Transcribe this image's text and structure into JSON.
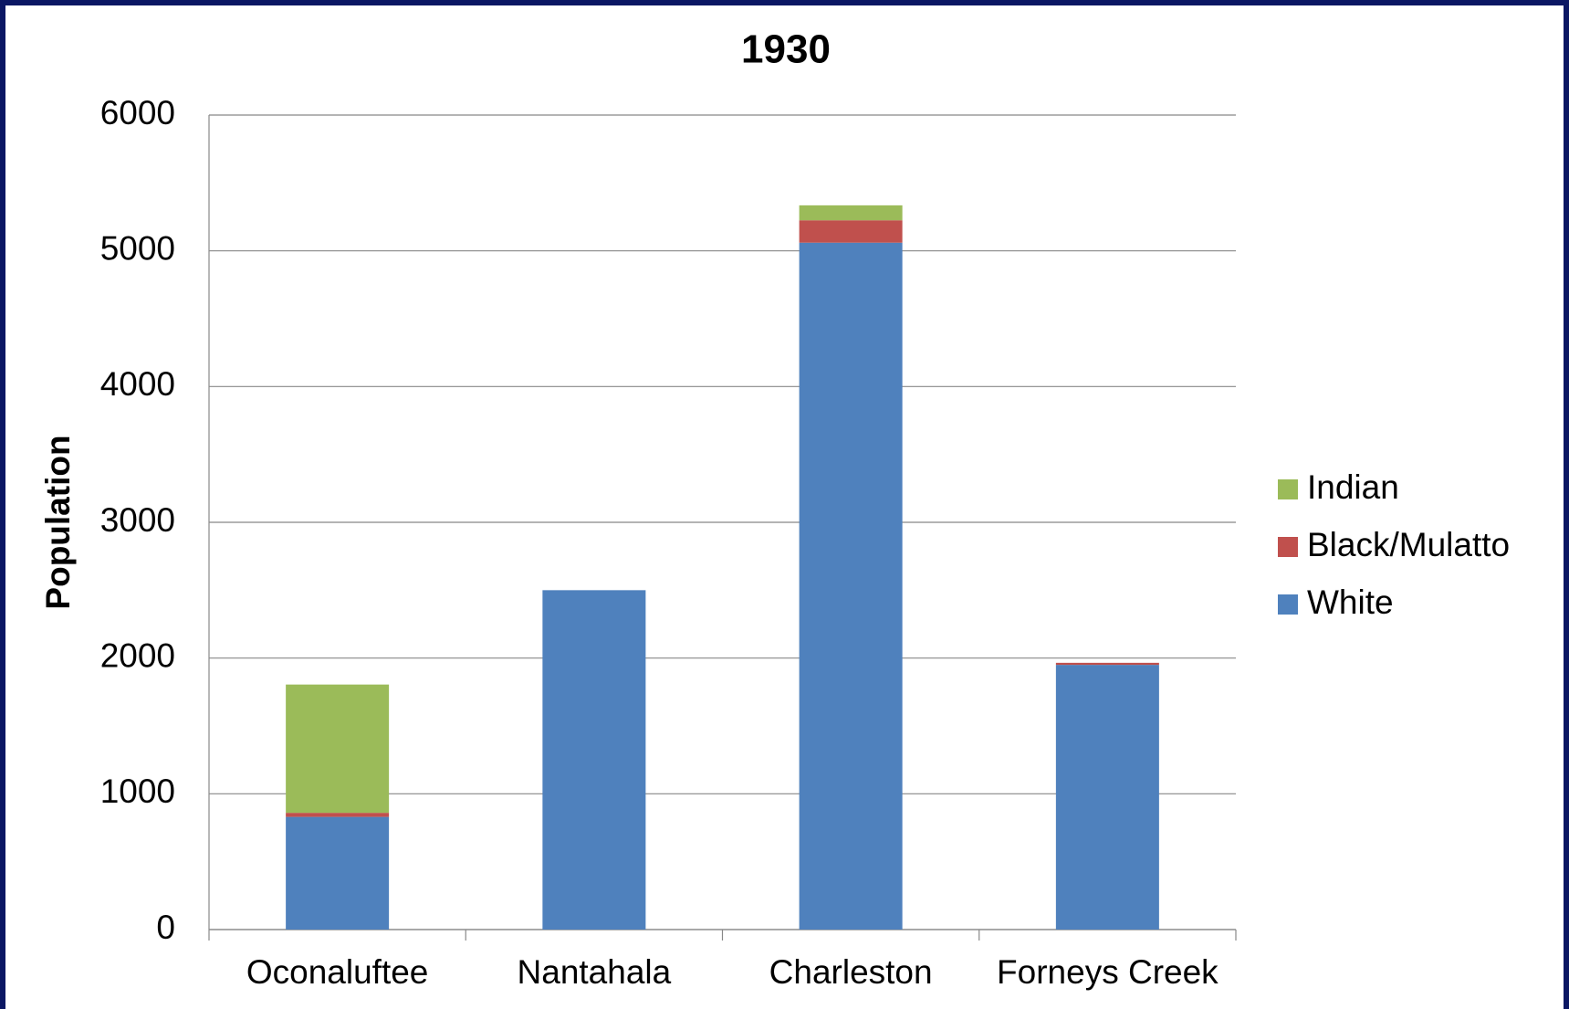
{
  "chart_data": {
    "type": "bar",
    "stacked": true,
    "title": "1930",
    "y_label": "Population",
    "categories": [
      "Oconaluftee",
      "Nantahala",
      "Charleston",
      "Forneys Creek"
    ],
    "series": [
      {
        "name": "White",
        "color": "#4f81bd",
        "values": [
          830,
          2500,
          5060,
          1950
        ]
      },
      {
        "name": "Black/Mulatto",
        "color": "#c0504d",
        "values": [
          30,
          0,
          165,
          15
        ]
      },
      {
        "name": "Indian",
        "color": "#9bbb59",
        "values": [
          945,
          0,
          110,
          0
        ]
      }
    ],
    "ylim": [
      0,
      6000
    ],
    "yticks": [
      0,
      1000,
      2000,
      3000,
      4000,
      5000,
      6000
    ],
    "grid": true,
    "legend": "right"
  }
}
